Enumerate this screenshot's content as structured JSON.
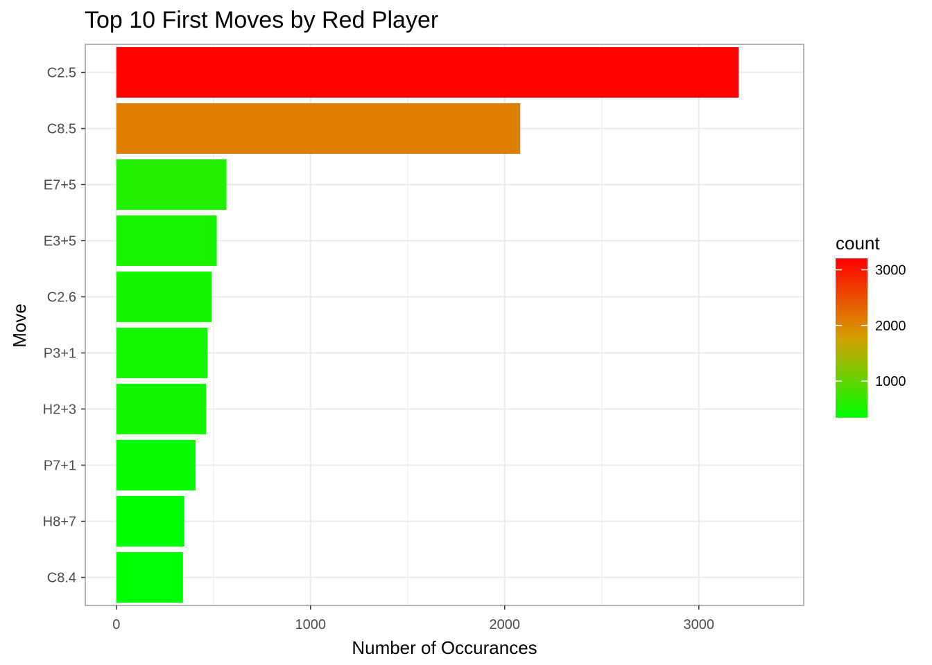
{
  "chart_data": {
    "type": "bar",
    "orientation": "horizontal",
    "title": "Top 10 First Moves by Red Player",
    "xlabel": "Number of Occurances",
    "ylabel": "Move",
    "categories": [
      "C2.5",
      "C8.5",
      "E7+5",
      "E3+5",
      "C2.6",
      "P3+1",
      "H2+3",
      "P7+1",
      "H8+7",
      "C8.4"
    ],
    "values": [
      3205,
      2080,
      567,
      517,
      490,
      469,
      462,
      408,
      350,
      343
    ],
    "xlim": [
      -160,
      3540
    ],
    "x_ticks": [
      0,
      1000,
      2000,
      3000
    ],
    "x_tick_labels": [
      "0",
      "1000",
      "2000",
      "3000"
    ],
    "x_minor_ticks": [
      500,
      1500,
      2500
    ],
    "grid": true,
    "legend": {
      "title": "count",
      "placement": "right",
      "range": [
        343,
        3205
      ],
      "ticks": [
        1000,
        2000,
        3000
      ],
      "tick_labels": [
        "1000",
        "2000",
        "3000"
      ],
      "low_color": "#00FF00",
      "mid_color": "#D4A000",
      "high_color": "#FF0000"
    }
  },
  "colors": {
    "panel_border": "#b3b3b3",
    "grid": "#ebebeb",
    "tick_text": "#4d4d4d"
  }
}
